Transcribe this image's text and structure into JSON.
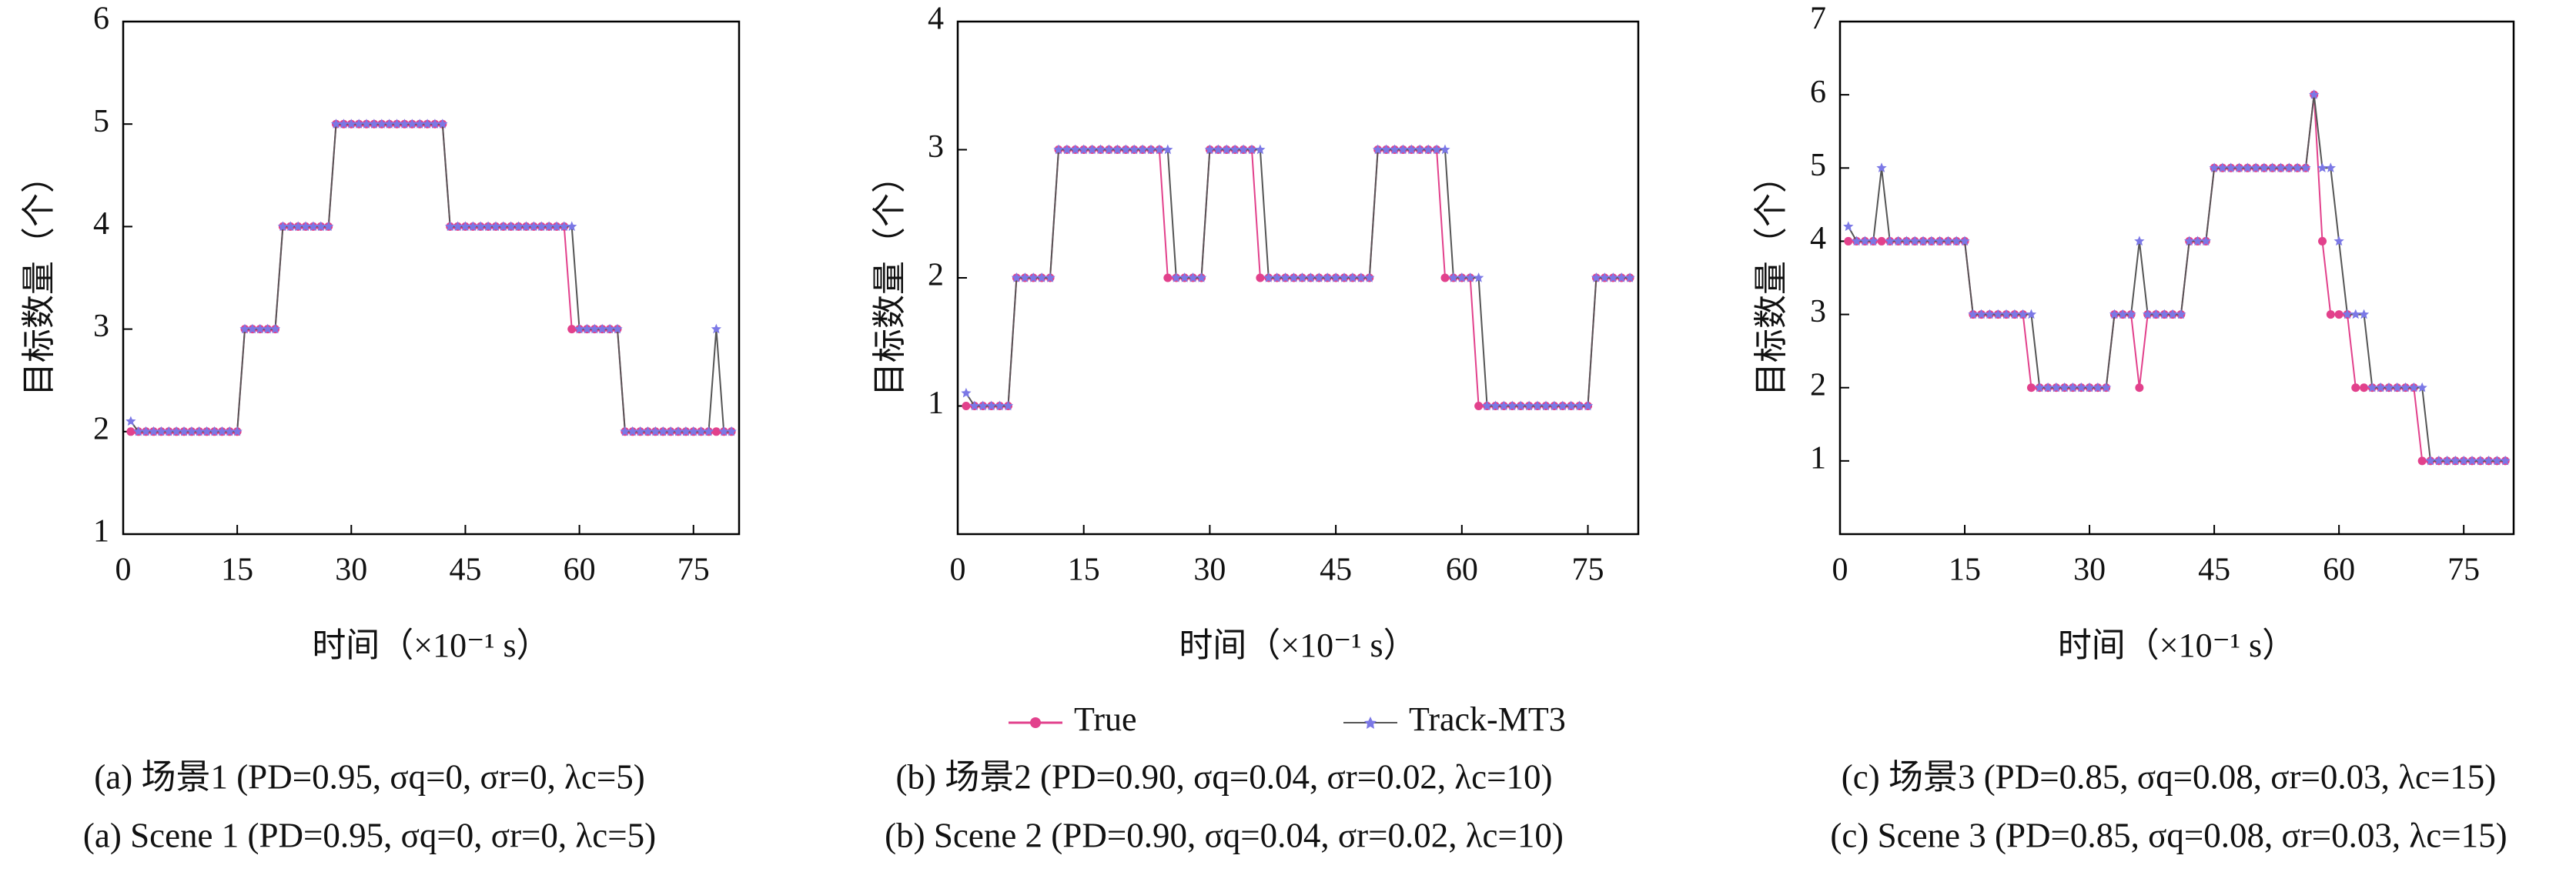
{
  "chart_data": [
    {
      "type": "line",
      "xlabel": "时间（×10⁻¹ s）",
      "ylabel": "目标数量（个）",
      "caption_zh": "(a) 场景1 (PD=0.95, σq=0, σr=0, λc=5)",
      "caption_en": "(a) Scene 1 (PD=0.95, σq=0, σr=0, λc=5)",
      "xlim": [
        0,
        81
      ],
      "ylim": [
        1,
        6
      ],
      "xticks": [
        0,
        15,
        30,
        45,
        60,
        75
      ],
      "yticks": [
        1,
        2,
        3,
        4,
        5,
        6
      ],
      "x": [
        1,
        2,
        3,
        4,
        5,
        6,
        7,
        8,
        9,
        10,
        11,
        12,
        13,
        14,
        15,
        16,
        17,
        18,
        19,
        20,
        21,
        22,
        23,
        24,
        25,
        26,
        27,
        28,
        29,
        30,
        31,
        32,
        33,
        34,
        35,
        36,
        37,
        38,
        39,
        40,
        41,
        42,
        43,
        44,
        45,
        46,
        47,
        48,
        49,
        50,
        51,
        52,
        53,
        54,
        55,
        56,
        57,
        58,
        59,
        60,
        61,
        62,
        63,
        64,
        65,
        66,
        67,
        68,
        69,
        70,
        71,
        72,
        73,
        74,
        75,
        76,
        77,
        78,
        79,
        80
      ],
      "series": [
        {
          "name": "True",
          "color": "#e2418c",
          "marker": "circle",
          "values": [
            2,
            2,
            2,
            2,
            2,
            2,
            2,
            2,
            2,
            2,
            2,
            2,
            2,
            2,
            2,
            3,
            3,
            3,
            3,
            3,
            4,
            4,
            4,
            4,
            4,
            4,
            4,
            5,
            5,
            5,
            5,
            5,
            5,
            5,
            5,
            5,
            5,
            5,
            5,
            5,
            5,
            5,
            4,
            4,
            4,
            4,
            4,
            4,
            4,
            4,
            4,
            4,
            4,
            4,
            4,
            4,
            4,
            4,
            3,
            3,
            3,
            3,
            3,
            3,
            3,
            2,
            2,
            2,
            2,
            2,
            2,
            2,
            2,
            2,
            2,
            2,
            2,
            2,
            2,
            2
          ]
        },
        {
          "name": "Track-MT3",
          "color": "#7b78e6",
          "marker": "star",
          "values": [
            2.1,
            2,
            2,
            2,
            2,
            2,
            2,
            2,
            2,
            2,
            2,
            2,
            2,
            2,
            2,
            3,
            3,
            3,
            3,
            3,
            4,
            4,
            4,
            4,
            4,
            4,
            4,
            5,
            5,
            5,
            5,
            5,
            5,
            5,
            5,
            5,
            5,
            5,
            5,
            5,
            5,
            5,
            4,
            4,
            4,
            4,
            4,
            4,
            4,
            4,
            4,
            4,
            4,
            4,
            4,
            4,
            4,
            4,
            4,
            3,
            3,
            3,
            3,
            3,
            3,
            2,
            2,
            2,
            2,
            2,
            2,
            2,
            2,
            2,
            2,
            2,
            2,
            3,
            2,
            2
          ]
        }
      ]
    },
    {
      "type": "line",
      "xlabel": "时间（×10⁻¹ s）",
      "ylabel": "目标数量（个）",
      "caption_zh": "(b) 场景2 (PD=0.90, σq=0.04, σr=0.02, λc=10)",
      "caption_en": "(b) Scene 2 (PD=0.90, σq=0.04, σr=0.02, λc=10)",
      "xlim": [
        0,
        81
      ],
      "ylim": [
        0,
        4
      ],
      "xticks": [
        0,
        15,
        30,
        45,
        60,
        75
      ],
      "yticks": [
        1,
        2,
        3,
        4
      ],
      "x": [
        1,
        2,
        3,
        4,
        5,
        6,
        7,
        8,
        9,
        10,
        11,
        12,
        13,
        14,
        15,
        16,
        17,
        18,
        19,
        20,
        21,
        22,
        23,
        24,
        25,
        26,
        27,
        28,
        29,
        30,
        31,
        32,
        33,
        34,
        35,
        36,
        37,
        38,
        39,
        40,
        41,
        42,
        43,
        44,
        45,
        46,
        47,
        48,
        49,
        50,
        51,
        52,
        53,
        54,
        55,
        56,
        57,
        58,
        59,
        60,
        61,
        62,
        63,
        64,
        65,
        66,
        67,
        68,
        69,
        70,
        71,
        72,
        73,
        74,
        75,
        76,
        77,
        78,
        79,
        80
      ],
      "series": [
        {
          "name": "True",
          "color": "#e2418c",
          "marker": "circle",
          "values": [
            1,
            1,
            1,
            1,
            1,
            1,
            2,
            2,
            2,
            2,
            2,
            3,
            3,
            3,
            3,
            3,
            3,
            3,
            3,
            3,
            3,
            3,
            3,
            3,
            2,
            2,
            2,
            2,
            2,
            3,
            3,
            3,
            3,
            3,
            3,
            2,
            2,
            2,
            2,
            2,
            2,
            2,
            2,
            2,
            2,
            2,
            2,
            2,
            2,
            3,
            3,
            3,
            3,
            3,
            3,
            3,
            3,
            2,
            2,
            2,
            2,
            1,
            1,
            1,
            1,
            1,
            1,
            1,
            1,
            1,
            1,
            1,
            1,
            1,
            1,
            2,
            2,
            2,
            2,
            2
          ]
        },
        {
          "name": "Track-MT3",
          "color": "#7b78e6",
          "marker": "star",
          "values": [
            1.1,
            1,
            1,
            1,
            1,
            1,
            2,
            2,
            2,
            2,
            2,
            3,
            3,
            3,
            3,
            3,
            3,
            3,
            3,
            3,
            3,
            3,
            3,
            3,
            3,
            2,
            2,
            2,
            2,
            3,
            3,
            3,
            3,
            3,
            3,
            3,
            2,
            2,
            2,
            2,
            2,
            2,
            2,
            2,
            2,
            2,
            2,
            2,
            2,
            3,
            3,
            3,
            3,
            3,
            3,
            3,
            3,
            3,
            2,
            2,
            2,
            2,
            1,
            1,
            1,
            1,
            1,
            1,
            1,
            1,
            1,
            1,
            1,
            1,
            1,
            2,
            2,
            2,
            2,
            2
          ]
        }
      ]
    },
    {
      "type": "line",
      "xlabel": "时间（×10⁻¹ s）",
      "ylabel": "目标数量（个）",
      "caption_zh": "(c) 场景3 (PD=0.85, σq=0.08, σr=0.03, λc=15)",
      "caption_en": "(c) Scene 3 (PD=0.85, σq=0.08, σr=0.03, λc=15)",
      "xlim": [
        0,
        81
      ],
      "ylim": [
        0,
        7
      ],
      "xticks": [
        0,
        15,
        30,
        45,
        60,
        75
      ],
      "yticks": [
        1,
        2,
        3,
        4,
        5,
        6,
        7
      ],
      "x": [
        1,
        2,
        3,
        4,
        5,
        6,
        7,
        8,
        9,
        10,
        11,
        12,
        13,
        14,
        15,
        16,
        17,
        18,
        19,
        20,
        21,
        22,
        23,
        24,
        25,
        26,
        27,
        28,
        29,
        30,
        31,
        32,
        33,
        34,
        35,
        36,
        37,
        38,
        39,
        40,
        41,
        42,
        43,
        44,
        45,
        46,
        47,
        48,
        49,
        50,
        51,
        52,
        53,
        54,
        55,
        56,
        57,
        58,
        59,
        60,
        61,
        62,
        63,
        64,
        65,
        66,
        67,
        68,
        69,
        70,
        71,
        72,
        73,
        74,
        75,
        76,
        77,
        78,
        79,
        80
      ],
      "series": [
        {
          "name": "True",
          "color": "#e2418c",
          "marker": "circle",
          "values": [
            4,
            4,
            4,
            4,
            4,
            4,
            4,
            4,
            4,
            4,
            4,
            4,
            4,
            4,
            4,
            3,
            3,
            3,
            3,
            3,
            3,
            3,
            2,
            2,
            2,
            2,
            2,
            2,
            2,
            2,
            2,
            2,
            3,
            3,
            3,
            2,
            3,
            3,
            3,
            3,
            3,
            4,
            4,
            4,
            5,
            5,
            5,
            5,
            5,
            5,
            5,
            5,
            5,
            5,
            5,
            5,
            6,
            4,
            3,
            3,
            3,
            2,
            2,
            2,
            2,
            2,
            2,
            2,
            2,
            1,
            1,
            1,
            1,
            1,
            1,
            1,
            1,
            1,
            1,
            1
          ]
        },
        {
          "name": "Track-MT3",
          "color": "#7b78e6",
          "marker": "star",
          "values": [
            4.2,
            4,
            4,
            4,
            5,
            4,
            4,
            4,
            4,
            4,
            4,
            4,
            4,
            4,
            4,
            3,
            3,
            3,
            3,
            3,
            3,
            3,
            3,
            2,
            2,
            2,
            2,
            2,
            2,
            2,
            2,
            2,
            3,
            3,
            3,
            4,
            3,
            3,
            3,
            3,
            3,
            4,
            4,
            4,
            5,
            5,
            5,
            5,
            5,
            5,
            5,
            5,
            5,
            5,
            5,
            5,
            6,
            5,
            5,
            4,
            3,
            3,
            3,
            2,
            2,
            2,
            2,
            2,
            2,
            2,
            1,
            1,
            1,
            1,
            1,
            1,
            1,
            1,
            1,
            1
          ]
        }
      ]
    }
  ]
}
